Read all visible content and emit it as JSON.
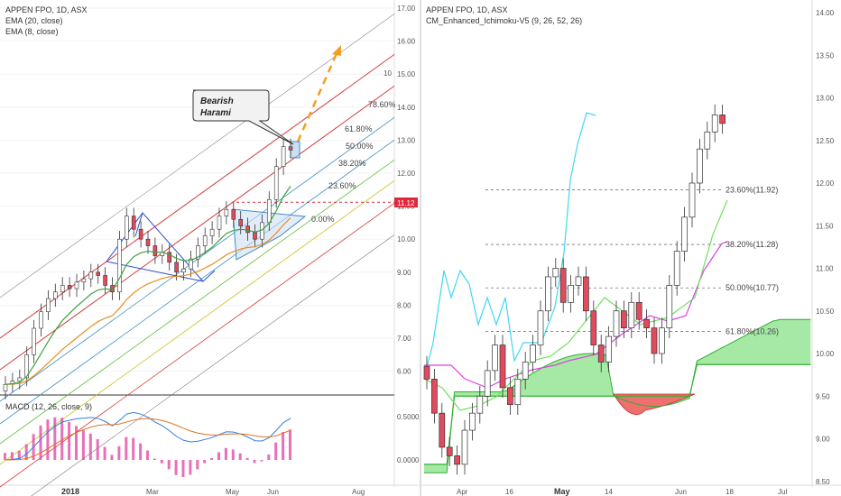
{
  "colors": {
    "up": "#ffffff",
    "down": "#e24a5e",
    "outline": "#333333",
    "red_line": "#d33a3a",
    "fib_blue": "#3c8dc4",
    "fib_green": "#5fbf3c",
    "fib_yellow": "#c8c020",
    "cloud_green": "#7fe07f",
    "cloud_red": "#f07070",
    "kijun": "#e040e0",
    "cyan": "#40d8f0",
    "tenkan": "#70e060",
    "ema20": "#e69020",
    "ema8": "#40a040"
  },
  "left": {
    "title": "APPEN FPO, 1D, ASX",
    "ema20_label": "EMA (20, close)",
    "ema8_label": "EMA (8, close)",
    "bubble_line1": "Bearish",
    "bubble_line2": "Harami",
    "price_tag": "11.12",
    "macd_label": "MACD (12, 26, close, 9)",
    "fib": [
      {
        "label": "78.60%",
        "color": "#3c8dc4"
      },
      {
        "label": "61.80%",
        "color": "#3c8dc4"
      },
      {
        "label": "50.00%",
        "color": "#5fbf3c"
      },
      {
        "label": "38.20%",
        "color": "#c8c020"
      },
      {
        "label": "23.60%",
        "color": "#d33a3a"
      },
      {
        "label": "0.00%",
        "color": "#888888"
      }
    ],
    "y_ticks": [
      "17.00",
      "16.00",
      "15.00",
      "14.00",
      "13.00",
      "12.00",
      "11.00",
      "10.00",
      "9.00",
      "8.00",
      "7.00",
      "6.00"
    ],
    "macd_ticks": [
      "0.5000",
      "0.0000"
    ],
    "x_ticks": [
      "2018",
      "Mar",
      "May",
      "Jun",
      "Aug"
    ],
    "channel_label": "10"
  },
  "right": {
    "title": "APPEN FPO, 1D, ASX",
    "indicator": "CM_Enhanced_Ichimoku-V5 (9, 26, 52, 26)",
    "fib": [
      "23.60%(11.92)",
      "38.20%(11.28)",
      "50.00%(10.77)",
      "61.80%(10.26)"
    ],
    "y_ticks": [
      "14.00",
      "13.50",
      "13.00",
      "12.50",
      "12.00",
      "11.50",
      "11.00",
      "10.50",
      "10.00",
      "9.50",
      "9.00",
      "8.50"
    ],
    "x_ticks": [
      "Apr",
      "16",
      "May",
      "14",
      "Jun",
      "18",
      "Jul"
    ]
  },
  "chart_data": [
    {
      "type": "line",
      "title": "APPEN FPO, 1D, ASX",
      "series_labels": [
        "EMA (20, close)",
        "EMA (8, close)"
      ],
      "ylim": [
        5.0,
        17.2
      ],
      "approx_close": [
        5.6,
        5.7,
        5.8,
        6.5,
        7.3,
        7.8,
        8.2,
        8.4,
        8.6,
        8.5,
        8.7,
        8.8,
        9.0,
        8.9,
        8.6,
        8.4,
        10.0,
        10.7,
        10.3,
        10.0,
        9.8,
        9.5,
        9.6,
        9.3,
        9.0,
        9.1,
        9.4,
        9.8,
        10.1,
        10.3,
        10.7,
        10.9,
        10.6,
        10.4,
        10.2,
        10.0,
        10.5,
        11.2,
        12.2,
        12.8,
        12.7
      ],
      "annotations": [
        "Bearish Harami",
        "11.12"
      ]
    },
    {
      "type": "line",
      "title": "MACD (12, 26, close, 9)",
      "ylim": [
        -0.2,
        0.7
      ]
    },
    {
      "type": "line",
      "title": "APPEN FPO, 1D, ASX",
      "indicator": "CM_Enhanced_Ichimoku-V5 (9, 26, 52, 26)",
      "ylim": [
        8.4,
        14.1
      ],
      "fib_levels": [
        {
          "label": "23.60%",
          "value": 11.92
        },
        {
          "label": "38.20%",
          "value": 11.28
        },
        {
          "label": "50.00%",
          "value": 10.77
        },
        {
          "label": "61.80%",
          "value": 10.26
        }
      ],
      "approx_close": [
        9.7,
        9.3,
        8.9,
        8.8,
        8.7,
        9.1,
        9.3,
        9.5,
        9.8,
        10.1,
        9.6,
        9.4,
        9.7,
        9.9,
        10.1,
        10.5,
        10.9,
        11.0,
        10.6,
        10.8,
        10.9,
        10.5,
        10.1,
        9.9,
        10.2,
        10.5,
        10.3,
        10.6,
        10.4,
        10.3,
        10.0,
        10.3,
        10.8,
        11.2,
        11.6,
        12.0,
        12.4,
        12.6,
        12.8,
        12.7
      ]
    }
  ]
}
